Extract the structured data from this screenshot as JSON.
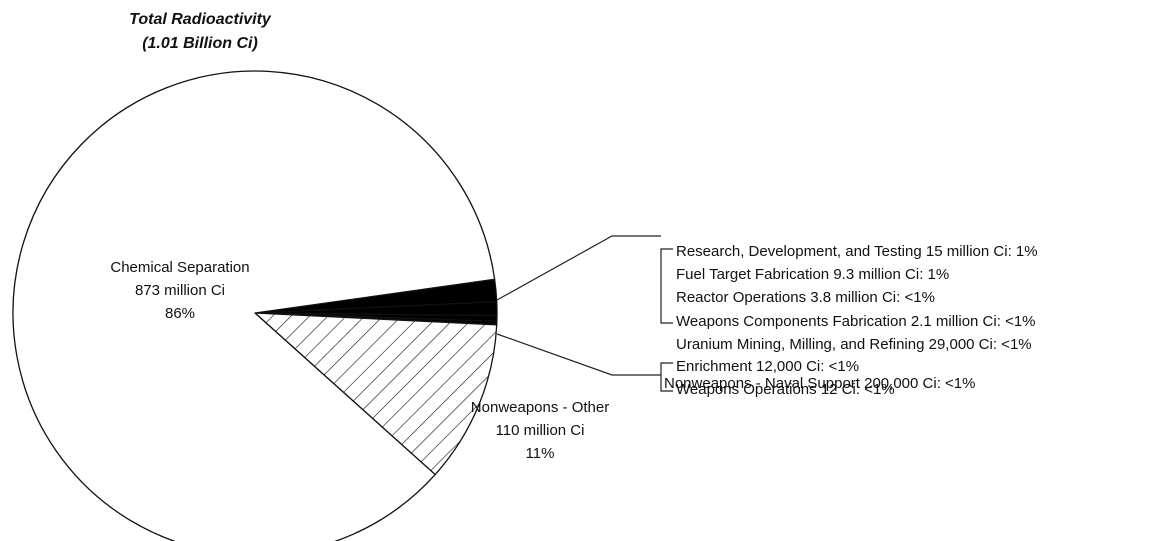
{
  "chart_data": {
    "type": "pie",
    "title": "Total Radioactivity",
    "subtitle": "(1.01 Billion Ci)",
    "categories": [
      "Research, Development, and Testing",
      "Fuel Target Fabrication",
      "Reactor Operations",
      "Weapons Components Fabrication",
      "Uranium Mining, Milling, and Refining",
      "Enrichment",
      "Weapons Operations",
      "Nonweapons - Naval Support",
      "Nonweapons - Other",
      "Chemical Separation"
    ],
    "values": [
      15000000,
      9300000,
      3800000,
      2100000,
      29000,
      12000,
      12,
      200000,
      110000000,
      873000000
    ],
    "value_labels": [
      "15 million Ci",
      "9.3 million Ci",
      "3.8 million Ci",
      "2.1 million Ci",
      "29,000 Ci",
      "12,000 Ci",
      "12 Ci",
      "200,000 Ci",
      "110 million Ci",
      "873 million Ci"
    ],
    "percent_labels": [
      "1%",
      "1%",
      "<1%",
      "<1%",
      "<1%",
      "<1%",
      "<1%",
      "<1%",
      "11%",
      "86%"
    ],
    "fills": [
      "#000000",
      "#000000",
      "#000000",
      "#000000",
      "#000000",
      "#000000",
      "#000000",
      "#ffffff",
      "hatch",
      "#ffffff"
    ]
  }
}
